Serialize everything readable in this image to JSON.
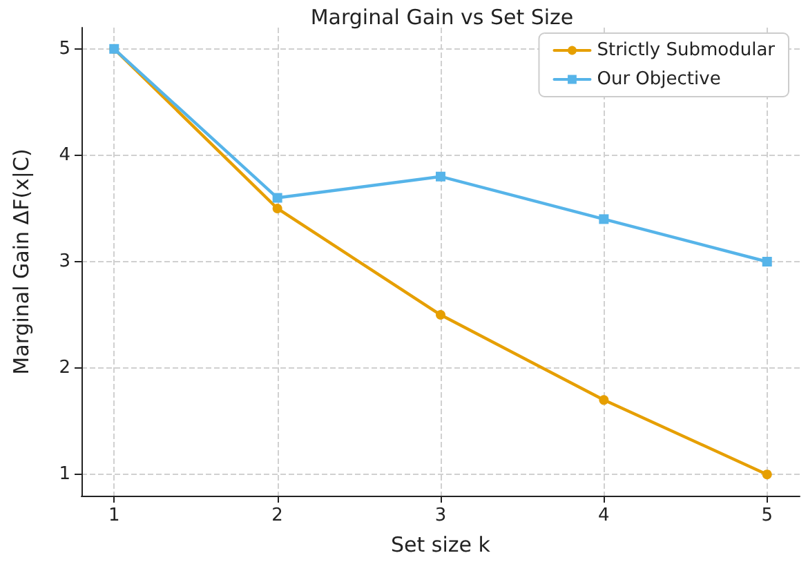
{
  "chart_data": {
    "type": "line",
    "title": "Marginal Gain vs Set Size",
    "xlabel": "Set size k",
    "ylabel": "Marginal Gain ΔF(x|C)",
    "x": [
      1,
      2,
      3,
      4,
      5
    ],
    "series": [
      {
        "name": "Strictly Submodular",
        "color": "#e69f00",
        "marker": "circle",
        "values": [
          5,
          3.5,
          2.5,
          1.7,
          1.0
        ]
      },
      {
        "name": "Our Objective",
        "color": "#56b4e9",
        "marker": "square",
        "values": [
          5,
          3.6,
          3.8,
          3.4,
          3.0
        ]
      }
    ],
    "xlim": [
      0.8,
      5.2
    ],
    "ylim": [
      0.8,
      5.2
    ],
    "xticks": [
      1,
      2,
      3,
      4,
      5
    ],
    "yticks": [
      1,
      2,
      3,
      4,
      5
    ],
    "grid": true,
    "legend": "top right",
    "line_style": "solid"
  }
}
